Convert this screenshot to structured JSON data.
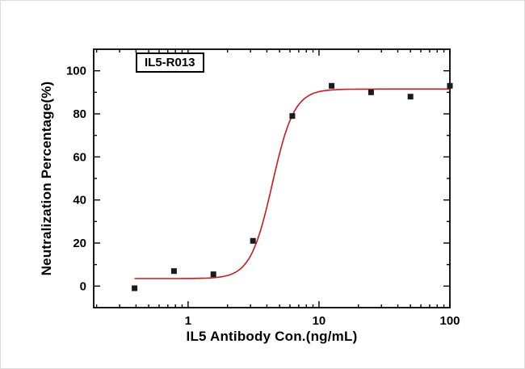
{
  "chart_data": {
    "type": "scatter",
    "title": "IL5-R013",
    "xlabel": "IL5 Antibody Con.(ng/mL)",
    "ylabel": "Neutralization Percentage(%)",
    "x_scale": "log",
    "grid": false,
    "legend": "none",
    "background": "#ffffff",
    "xlim": [
      0.19,
      100
    ],
    "ylim": [
      -10,
      110
    ],
    "x_major_ticks": [
      1,
      10,
      100
    ],
    "x_tick_labels": [
      "1",
      "10",
      "100"
    ],
    "y_major_ticks": [
      0,
      20,
      40,
      60,
      80,
      100
    ],
    "y_minor_step": 10,
    "series": [
      {
        "name": "neutralization-data",
        "type": "scatter",
        "marker": "square",
        "color": "#1a1a1a",
        "x": [
          0.39,
          0.78,
          1.56,
          3.13,
          6.25,
          12.5,
          25,
          50,
          100
        ],
        "y": [
          -1,
          7,
          5.5,
          21,
          79,
          93,
          90,
          88,
          93
        ]
      },
      {
        "name": "4pl-fit-curve",
        "type": "line",
        "color": "#cc1a1a",
        "fit": {
          "model": "4PL",
          "bottom": 3.5,
          "top": 91.5,
          "ec50": 4.4,
          "hill": 5.2,
          "x_start": 0.39,
          "x_end": 100
        }
      }
    ]
  }
}
